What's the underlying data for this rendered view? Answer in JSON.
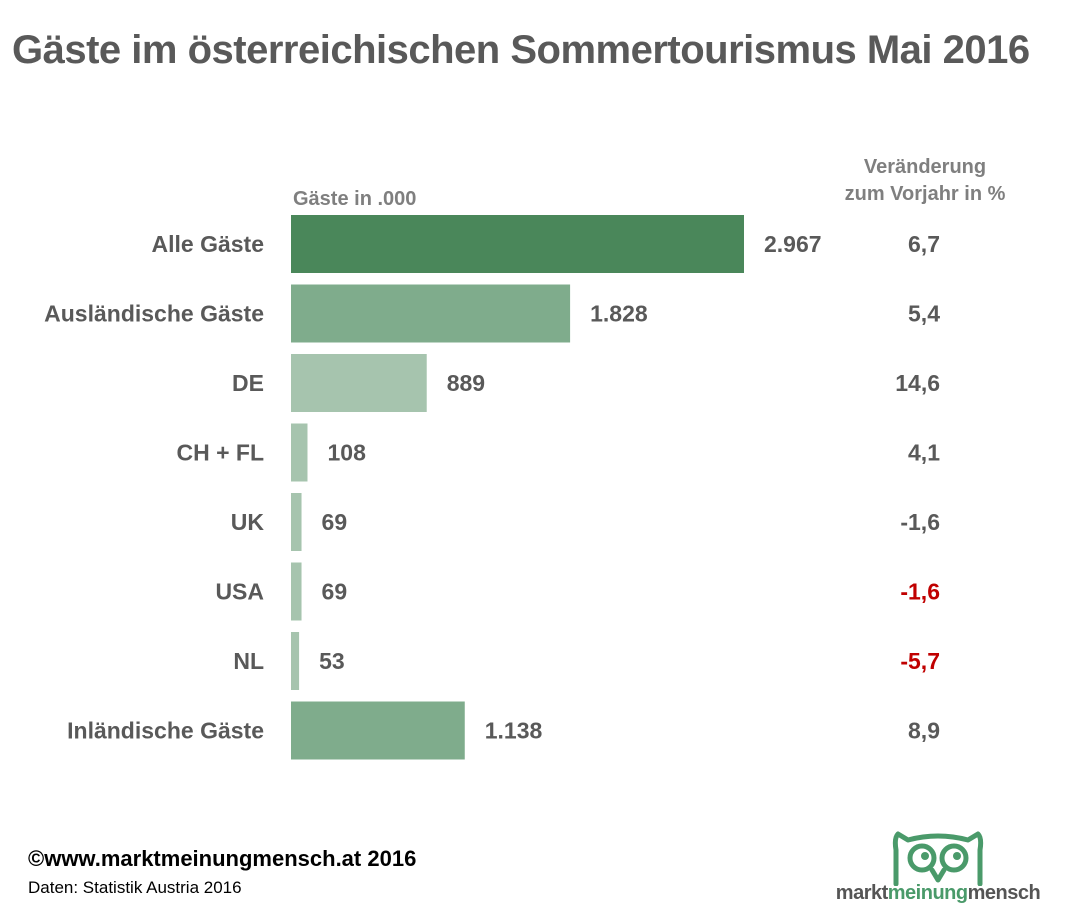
{
  "title": "Gäste im österreichischen Sommertourismus Mai 2016",
  "unit_label": "Gäste in .000",
  "change_header": {
    "line1": "Veränderung",
    "line2": "zum Vorjahr in %"
  },
  "colors": {
    "bar_total": "#4a875a",
    "bar_group": "#7fac8c",
    "bar_country": "#a6c4ae",
    "text": "#595959",
    "negative_highlight": "#c00000",
    "logo_green": "#4a9a6a"
  },
  "chart_data": {
    "type": "bar",
    "orientation": "horizontal",
    "title": "Gäste im österreichischen Sommertourismus Mai 2016",
    "xlabel": "Gäste in .000",
    "ylabel": "",
    "xlim": [
      0,
      2967
    ],
    "grid": false,
    "categories": [
      "Alle Gäste",
      "Ausländische Gäste",
      "DE",
      "CH + FL",
      "UK",
      "USA",
      "NL",
      "Inländische Gäste"
    ],
    "values": [
      2967,
      1828,
      889,
      108,
      69,
      69,
      53,
      1138
    ],
    "value_labels": [
      "2.967",
      "1.828",
      "889",
      "108",
      "69",
      "69",
      "53",
      "1.138"
    ],
    "bar_colors": [
      "#4a875a",
      "#7fac8c",
      "#a6c4ae",
      "#a6c4ae",
      "#a6c4ae",
      "#a6c4ae",
      "#a6c4ae",
      "#7fac8c"
    ],
    "series": [
      {
        "name": "Gäste in .000",
        "values": [
          2967,
          1828,
          889,
          108,
          69,
          69,
          53,
          1138
        ]
      },
      {
        "name": "Veränderung zum Vorjahr in %",
        "values": [
          6.7,
          5.4,
          14.6,
          4.1,
          -1.6,
          -1.6,
          -5.7,
          8.9
        ]
      }
    ],
    "change_labels": [
      "6,7",
      "5,4",
      "14,6",
      "4,1",
      "-1,6",
      "-1,6",
      "-5,7",
      "8,9"
    ],
    "change_highlight": [
      false,
      false,
      false,
      false,
      false,
      true,
      true,
      false
    ]
  },
  "footer": {
    "copyright": "©www.marktmeinungmensch.at 2016",
    "source": "Daten: Statistik Austria 2016"
  },
  "logo": {
    "icon": "owl-icon",
    "part1": "markt",
    "part2": "meinung",
    "part3": "mensch"
  }
}
